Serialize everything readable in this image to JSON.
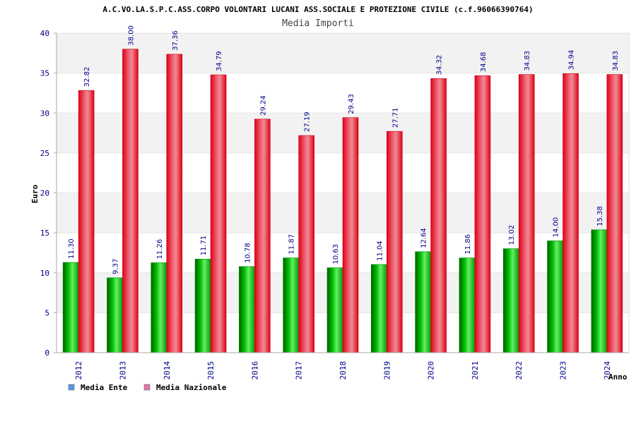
{
  "chart_data": {
    "type": "bar",
    "title": "A.C.VO.LA.S.P.C.ASS.CORPO VOLONTARI LUCANI ASS.SOCIALE E PROTEZIONE CIVILE (c.f.96066390764)",
    "subtitle": "Media Importi",
    "ylabel": "Euro",
    "xlabel": "Anno",
    "ylim": [
      0,
      40
    ],
    "yticks": [
      0,
      5,
      10,
      15,
      20,
      25,
      30,
      35,
      40
    ],
    "grid": true,
    "legend": "bottom-left",
    "categories": [
      "2012",
      "2013",
      "2014",
      "2015",
      "2016",
      "2017",
      "2018",
      "2019",
      "2020",
      "2021",
      "2022",
      "2023",
      "2024"
    ],
    "series": [
      {
        "name": "Media Ente",
        "color": "#00b000",
        "legend_color": "#5599dd",
        "values": [
          11.3,
          9.37,
          11.26,
          11.71,
          10.78,
          11.87,
          10.63,
          11.04,
          12.64,
          11.86,
          13.02,
          14.0,
          15.38
        ]
      },
      {
        "name": "Media Nazionale",
        "color": "#e0001a",
        "legend_color": "#dd77aa",
        "values": [
          32.82,
          38.0,
          37.36,
          34.79,
          29.24,
          27.19,
          29.43,
          27.71,
          34.32,
          34.68,
          34.83,
          34.94,
          34.83
        ]
      }
    ]
  }
}
